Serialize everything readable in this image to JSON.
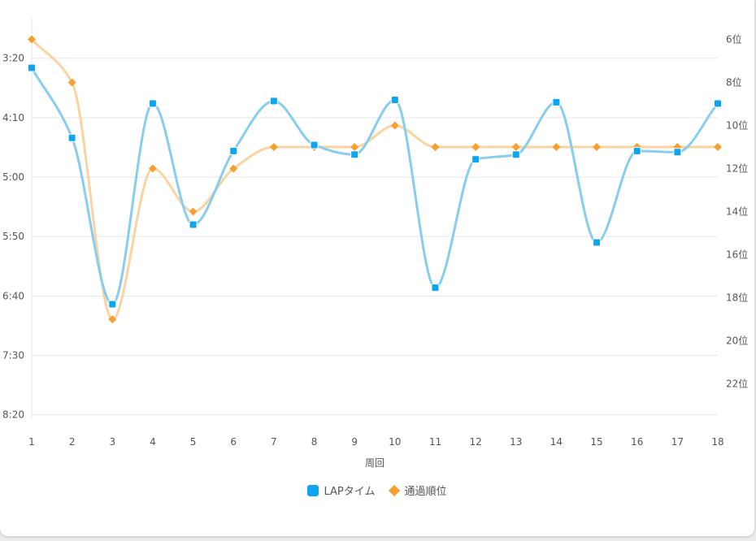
{
  "chart_data": {
    "type": "line",
    "xlabel": "周回",
    "x": [
      1,
      2,
      3,
      4,
      5,
      6,
      7,
      8,
      9,
      10,
      11,
      12,
      13,
      14,
      15,
      16,
      17,
      18
    ],
    "left_axis": {
      "ticks": [
        "3:20",
        "4:10",
        "5:00",
        "5:50",
        "6:40",
        "7:30",
        "8:20"
      ],
      "tick_seconds": [
        200,
        250,
        300,
        350,
        400,
        450,
        500
      ],
      "reversed": true,
      "range_seconds": [
        166,
        503
      ]
    },
    "right_axis": {
      "ticks": [
        "6位",
        "8位",
        "10位",
        "12位",
        "14位",
        "16位",
        "18位",
        "20位",
        "22位"
      ],
      "tick_values": [
        6,
        8,
        10,
        12,
        14,
        16,
        18,
        20,
        22
      ],
      "reversed": true,
      "range": [
        5,
        23.6
      ]
    },
    "series": [
      {
        "name": "LAPタイム",
        "axis": "left",
        "color": "#0ea5f0",
        "line_color": "#87cdee",
        "marker": "square",
        "values_seconds": [
          208,
          267,
          407,
          238,
          340,
          278,
          236,
          273,
          281,
          235,
          393,
          285,
          281,
          237,
          355,
          278,
          279,
          238
        ]
      },
      {
        "name": "通過順位",
        "axis": "right",
        "color": "#f5a031",
        "line_color": "#fbd3a0",
        "marker": "diamond",
        "values": [
          6,
          8,
          19,
          12,
          14,
          12,
          11,
          11,
          11,
          10,
          11,
          11,
          11,
          11,
          11,
          11,
          11,
          11
        ]
      }
    ],
    "legend": "bottom-center",
    "grid": true
  }
}
